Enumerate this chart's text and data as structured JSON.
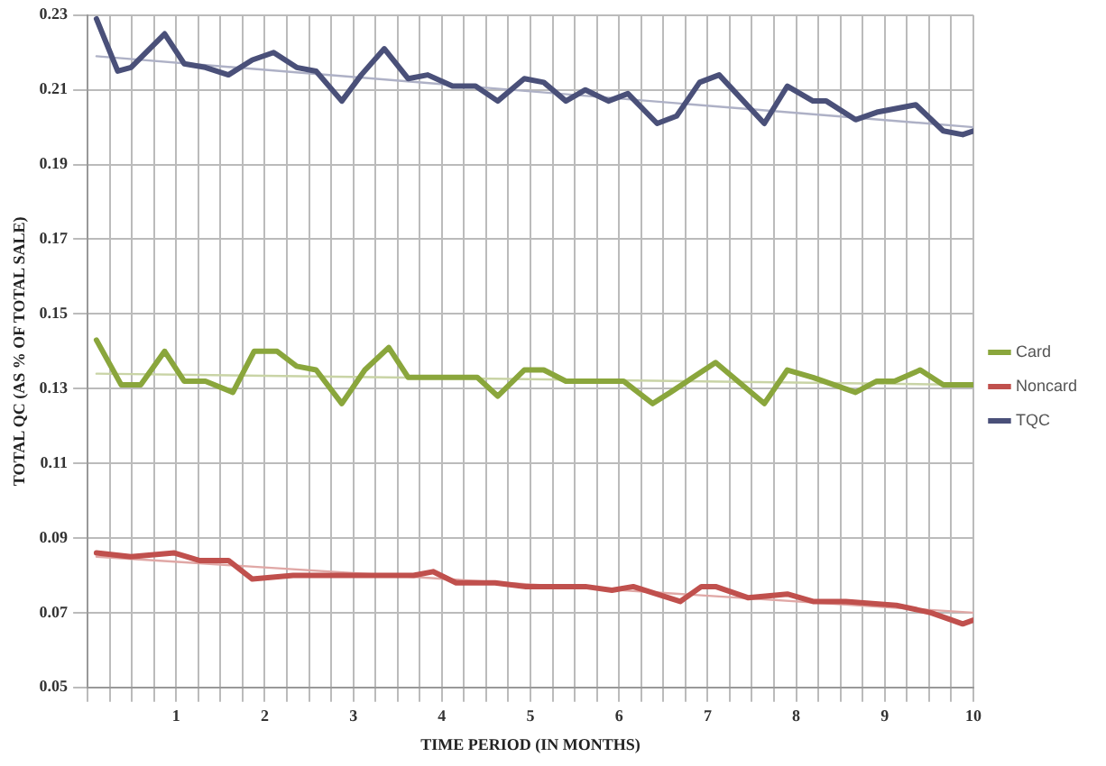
{
  "chart_data": {
    "type": "line",
    "xlabel": "TIME PERIOD (IN MONTHS)",
    "ylabel": "TOTAL QC (AS % OF TOTAL SALE)",
    "xlim": [
      0,
      10
    ],
    "xticks": [
      {
        "value": 0,
        "label": null
      },
      {
        "value": 0.25,
        "label": null
      },
      {
        "value": 0.5,
        "label": null
      },
      {
        "value": 0.75,
        "label": null
      },
      1,
      {
        "value": 1.25,
        "label": null
      },
      {
        "value": 1.5,
        "label": null
      },
      {
        "value": 1.75,
        "label": null
      },
      2,
      {
        "value": 2.25,
        "label": null
      },
      {
        "value": 2.5,
        "label": null
      },
      {
        "value": 2.75,
        "label": null
      },
      3,
      {
        "value": 3.25,
        "label": null
      },
      {
        "value": 3.5,
        "label": null
      },
      {
        "value": 3.75,
        "label": null
      },
      4,
      {
        "value": 4.25,
        "label": null
      },
      {
        "value": 4.5,
        "label": null
      },
      {
        "value": 4.75,
        "label": null
      },
      5,
      {
        "value": 5.25,
        "label": null
      },
      {
        "value": 5.5,
        "label": null
      },
      {
        "value": 5.75,
        "label": null
      },
      6,
      {
        "value": 6.25,
        "label": null
      },
      {
        "value": 6.5,
        "label": null
      },
      {
        "value": 6.75,
        "label": null
      },
      7,
      {
        "value": 7.25,
        "label": null
      },
      {
        "value": 7.5,
        "label": null
      },
      {
        "value": 7.75,
        "label": null
      },
      8,
      {
        "value": 8.25,
        "label": null
      },
      {
        "value": 8.5,
        "label": null
      },
      {
        "value": 8.75,
        "label": null
      },
      9,
      {
        "value": 9.25,
        "label": null
      },
      {
        "value": 9.5,
        "label": null
      },
      {
        "value": 9.75,
        "label": null
      },
      10
    ],
    "ylim": [
      0.05,
      0.23
    ],
    "yticks": [
      0.05,
      0.07,
      0.09,
      0.11,
      0.13,
      0.15,
      0.17,
      0.19,
      0.21,
      0.23
    ],
    "grid": true,
    "legend": "right",
    "marker": "none",
    "line_style": "solid",
    "series": [
      {
        "name": "Card",
        "color": "#8aa63c",
        "x": [
          0.1,
          0.38,
          0.6,
          0.87,
          1.09,
          1.33,
          1.64,
          1.88,
          2.14,
          2.36,
          2.58,
          2.87,
          3.13,
          3.4,
          3.62,
          3.95,
          4.4,
          4.63,
          4.93,
          5.15,
          5.4,
          6.05,
          6.38,
          6.58,
          7.09,
          7.64,
          7.9,
          8.19,
          8.67,
          8.91,
          9.11,
          9.4,
          9.66,
          10
        ],
        "values": [
          0.143,
          0.131,
          0.131,
          0.14,
          0.132,
          0.132,
          0.129,
          0.14,
          0.14,
          0.136,
          0.135,
          0.126,
          0.135,
          0.141,
          0.133,
          0.133,
          0.133,
          0.128,
          0.135,
          0.135,
          0.132,
          0.132,
          0.126,
          0.129,
          0.137,
          0.126,
          0.135,
          0.133,
          0.129,
          0.132,
          0.132,
          0.135,
          0.131,
          0.131
        ]
      },
      {
        "name": "Noncard",
        "color": "#c0504d",
        "x": [
          0.1,
          0.49,
          0.98,
          1.26,
          1.59,
          1.86,
          2.32,
          2.76,
          3.2,
          3.68,
          3.9,
          4.16,
          4.6,
          4.95,
          5.4,
          5.62,
          5.92,
          6.16,
          6.69,
          6.93,
          7.09,
          7.46,
          7.9,
          8.19,
          8.56,
          9.13,
          9.52,
          9.88,
          10
        ],
        "values": [
          0.086,
          0.085,
          0.086,
          0.084,
          0.084,
          0.079,
          0.08,
          0.08,
          0.08,
          0.08,
          0.081,
          0.078,
          0.078,
          0.077,
          0.077,
          0.077,
          0.076,
          0.077,
          0.073,
          0.077,
          0.077,
          0.074,
          0.075,
          0.073,
          0.073,
          0.072,
          0.07,
          0.067,
          0.068
        ]
      },
      {
        "name": "TQC",
        "color": "#4a5079",
        "x": [
          0.1,
          0.34,
          0.49,
          0.87,
          1.09,
          1.33,
          1.59,
          1.86,
          2.1,
          2.36,
          2.58,
          2.87,
          3.09,
          3.35,
          3.62,
          3.84,
          4.12,
          4.38,
          4.63,
          4.93,
          5.15,
          5.4,
          5.62,
          5.88,
          6.1,
          6.43,
          6.65,
          6.91,
          7.13,
          7.64,
          7.9,
          8.19,
          8.34,
          8.67,
          8.91,
          9.35,
          9.66,
          9.88,
          10
        ],
        "values": [
          0.229,
          0.215,
          0.216,
          0.225,
          0.217,
          0.216,
          0.214,
          0.218,
          0.22,
          0.216,
          0.215,
          0.207,
          0.214,
          0.221,
          0.213,
          0.214,
          0.211,
          0.211,
          0.207,
          0.213,
          0.212,
          0.207,
          0.21,
          0.207,
          0.209,
          0.201,
          0.203,
          0.212,
          0.214,
          0.201,
          0.211,
          0.207,
          0.207,
          0.202,
          0.204,
          0.206,
          0.199,
          0.198,
          0.199
        ]
      },
      {
        "type": "line",
        "color": "#c9d4a6",
        "x": [
          0.1,
          10
        ],
        "values": [
          0.134,
          0.131
        ]
      },
      {
        "type": "line",
        "color": "#e0a8a6",
        "x": [
          0.1,
          10
        ],
        "values": [
          0.085,
          0.07
        ]
      },
      {
        "type": "line",
        "color": "#aeb1c6",
        "x": [
          0.1,
          10
        ],
        "values": [
          0.219,
          0.2
        ]
      }
    ]
  }
}
